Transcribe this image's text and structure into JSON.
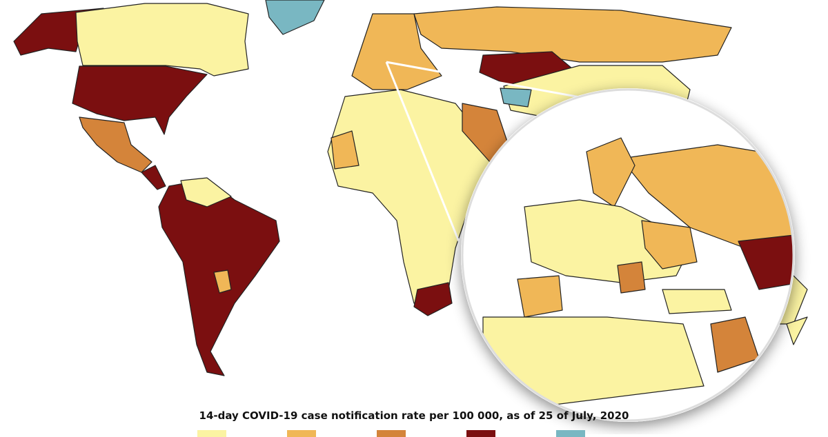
{
  "legend": {
    "title": "14-day COVID-19 case notification rate per 100 000, as of 25 of July, 2020",
    "categories": [
      {
        "color": "#fbf3a2"
      },
      {
        "color": "#f0b757"
      },
      {
        "color": "#d4843a"
      },
      {
        "color": "#7b0f10"
      },
      {
        "color": "#79b7c2"
      }
    ]
  },
  "colors": {
    "low": "#fbf3a2",
    "mid": "#f0b757",
    "high": "#d4843a",
    "very_high": "#7b0f10",
    "no_data": "#79b7c2"
  }
}
